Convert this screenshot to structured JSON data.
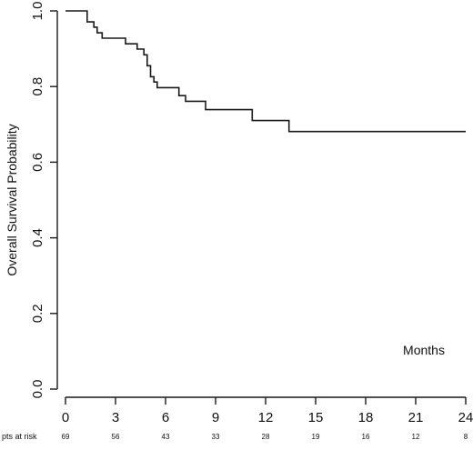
{
  "chart_data": {
    "type": "line",
    "title": "",
    "xlabel": "Months",
    "ylabel": "Overall Survival Probability",
    "xlim": [
      0,
      24
    ],
    "ylim": [
      0.0,
      1.0
    ],
    "x_ticks": [
      0,
      3,
      6,
      9,
      12,
      15,
      18,
      21,
      24
    ],
    "x_tick_labels": [
      "0",
      "3",
      "6",
      "9",
      "12",
      "15",
      "18",
      "21",
      "24"
    ],
    "y_ticks": [
      0.0,
      0.2,
      0.4,
      0.6,
      0.8,
      1.0
    ],
    "y_tick_labels": [
      "0.0",
      "0.2",
      "0.4",
      "0.6",
      "0.8",
      "1.0"
    ],
    "grid": false,
    "step": true,
    "series": [
      {
        "x": [
          0,
          1.3,
          1.7,
          1.9,
          2.2,
          3.6,
          4.3,
          4.7,
          4.9,
          5.1,
          5.3,
          5.5,
          6.8,
          7.2,
          8.4,
          11.2,
          13.4,
          24
        ],
        "y": [
          1.0,
          0.971,
          0.957,
          0.942,
          0.928,
          0.913,
          0.899,
          0.884,
          0.855,
          0.826,
          0.812,
          0.797,
          0.776,
          0.761,
          0.739,
          0.71,
          0.681,
          0.681
        ]
      }
    ],
    "risk_table": {
      "label": "pts at risk",
      "times": [
        0,
        3,
        6,
        9,
        12,
        15,
        18,
        21,
        24
      ],
      "values": [
        "69",
        "56",
        "43",
        "33",
        "28",
        "19",
        "16",
        "12",
        "8"
      ]
    }
  }
}
